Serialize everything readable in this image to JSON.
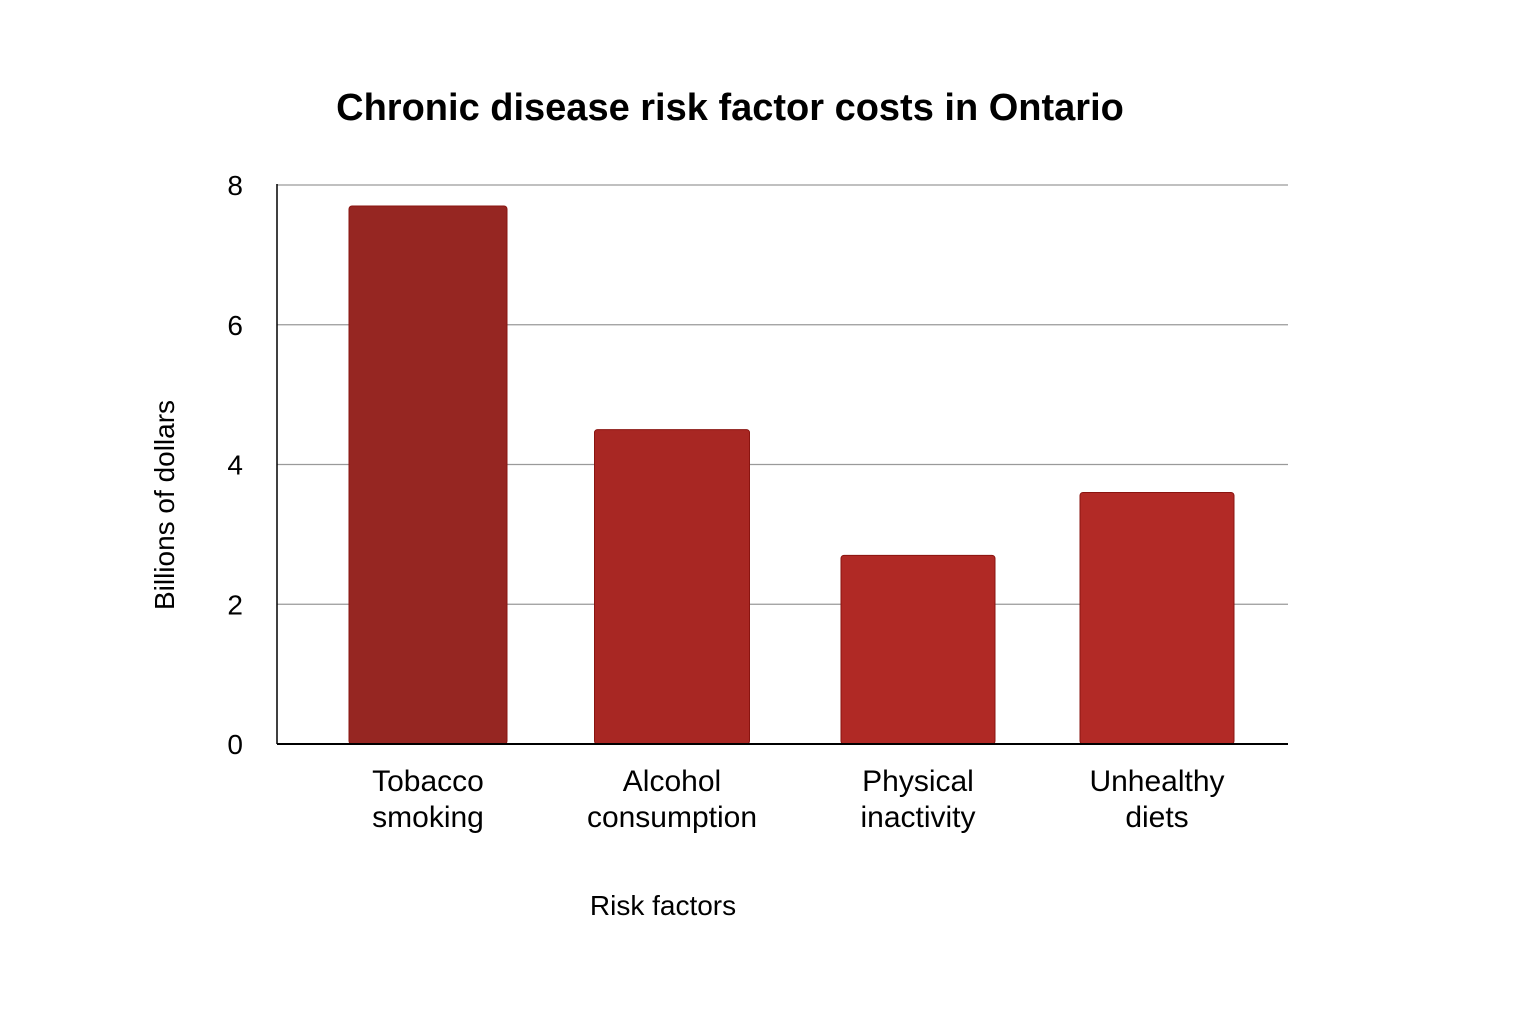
{
  "chart_data": {
    "type": "bar",
    "title": "Chronic disease risk factor costs in Ontario",
    "xlabel": "Risk factors",
    "ylabel": "Billions of dollars",
    "categories": [
      [
        "Tobacco",
        "smoking"
      ],
      [
        "Alcohol",
        "consumption"
      ],
      [
        "Physical",
        "inactivity"
      ],
      [
        "Unhealthy",
        "diets"
      ]
    ],
    "values": [
      7.7,
      4.5,
      2.7,
      3.6
    ],
    "ylim": [
      0,
      8
    ],
    "yticks": [
      0,
      2,
      4,
      6,
      8
    ],
    "grid": true,
    "colors": [
      "#962622",
      "#a82723",
      "#b02925",
      "#b22a26"
    ]
  }
}
